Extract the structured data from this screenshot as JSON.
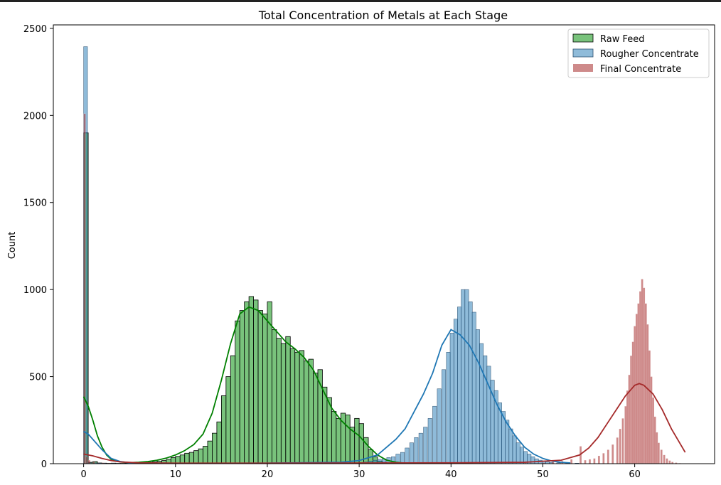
{
  "chart_data": {
    "type": "histogram",
    "title": "Total Concentration of Metals at Each Stage",
    "xlabel": "",
    "ylabel": "Count",
    "xlim": [
      -3.3,
      68.7
    ],
    "ylim": [
      0,
      2520
    ],
    "xticks": [
      0,
      10,
      20,
      30,
      40,
      50,
      60
    ],
    "yticks": [
      0,
      500,
      1000,
      1500,
      2000,
      2500
    ],
    "grid": false,
    "legend_position": "top-right",
    "series": [
      {
        "name": "Raw Feed",
        "color": "#4caf50",
        "kde_color": "#008000",
        "bin_width": 0.5,
        "bins": [
          [
            0.0,
            1900
          ],
          [
            0.5,
            8
          ],
          [
            1.0,
            12
          ],
          [
            1.5,
            4
          ],
          [
            2.0,
            3
          ],
          [
            2.5,
            2
          ],
          [
            3.0,
            3
          ],
          [
            3.5,
            2
          ],
          [
            4.0,
            2
          ],
          [
            4.5,
            3
          ],
          [
            5.0,
            3
          ],
          [
            5.5,
            4
          ],
          [
            6.0,
            5
          ],
          [
            6.5,
            6
          ],
          [
            7.0,
            8
          ],
          [
            7.5,
            10
          ],
          [
            8.0,
            15
          ],
          [
            8.5,
            18
          ],
          [
            9.0,
            25
          ],
          [
            9.5,
            35
          ],
          [
            10.0,
            42
          ],
          [
            10.5,
            50
          ],
          [
            11.0,
            60
          ],
          [
            11.5,
            65
          ],
          [
            12.0,
            75
          ],
          [
            12.5,
            85
          ],
          [
            13.0,
            100
          ],
          [
            13.5,
            130
          ],
          [
            14.0,
            175
          ],
          [
            14.5,
            240
          ],
          [
            15.0,
            390
          ],
          [
            15.5,
            500
          ],
          [
            16.0,
            620
          ],
          [
            16.5,
            820
          ],
          [
            17.0,
            880
          ],
          [
            17.5,
            930
          ],
          [
            18.0,
            960
          ],
          [
            18.5,
            940
          ],
          [
            19.0,
            880
          ],
          [
            19.5,
            860
          ],
          [
            20.0,
            930
          ],
          [
            20.5,
            770
          ],
          [
            21.0,
            720
          ],
          [
            21.5,
            690
          ],
          [
            22.0,
            730
          ],
          [
            22.5,
            660
          ],
          [
            23.0,
            640
          ],
          [
            23.5,
            650
          ],
          [
            24.0,
            590
          ],
          [
            24.5,
            600
          ],
          [
            25.0,
            520
          ],
          [
            25.5,
            540
          ],
          [
            26.0,
            440
          ],
          [
            26.5,
            380
          ],
          [
            27.0,
            300
          ],
          [
            27.5,
            260
          ],
          [
            28.0,
            290
          ],
          [
            28.5,
            280
          ],
          [
            29.0,
            210
          ],
          [
            29.5,
            260
          ],
          [
            30.0,
            230
          ],
          [
            30.5,
            150
          ],
          [
            31.0,
            80
          ],
          [
            31.5,
            40
          ],
          [
            32.0,
            15
          ],
          [
            32.5,
            8
          ],
          [
            33.0,
            4
          ]
        ],
        "kde": [
          [
            0,
            385
          ],
          [
            0.5,
            330
          ],
          [
            1,
            250
          ],
          [
            1.5,
            160
          ],
          [
            2,
            95
          ],
          [
            2.5,
            50
          ],
          [
            3,
            25
          ],
          [
            4,
            10
          ],
          [
            5,
            6
          ],
          [
            6,
            8
          ],
          [
            7,
            12
          ],
          [
            8,
            20
          ],
          [
            9,
            32
          ],
          [
            10,
            50
          ],
          [
            11,
            75
          ],
          [
            12,
            110
          ],
          [
            13,
            170
          ],
          [
            14,
            290
          ],
          [
            15,
            480
          ],
          [
            16,
            690
          ],
          [
            17,
            860
          ],
          [
            18,
            900
          ],
          [
            19,
            880
          ],
          [
            20,
            820
          ],
          [
            21,
            760
          ],
          [
            22,
            700
          ],
          [
            23,
            660
          ],
          [
            24,
            610
          ],
          [
            25,
            540
          ],
          [
            26,
            430
          ],
          [
            27,
            320
          ],
          [
            28,
            250
          ],
          [
            29,
            200
          ],
          [
            30,
            160
          ],
          [
            31,
            100
          ],
          [
            32,
            50
          ],
          [
            33,
            20
          ],
          [
            34,
            8
          ],
          [
            35,
            3
          ]
        ]
      },
      {
        "name": "Rougher Concentrate",
        "color": "#1f77b4",
        "kde_color": "#1f77b4",
        "bin_width": 0.42,
        "bins": [
          [
            0.0,
            2395
          ],
          [
            0.42,
            5
          ],
          [
            1.0,
            5
          ],
          [
            1.5,
            3
          ],
          [
            2.0,
            2
          ],
          [
            3.0,
            2
          ],
          [
            30.0,
            6
          ],
          [
            30.5,
            10
          ],
          [
            31.0,
            15
          ],
          [
            31.5,
            20
          ],
          [
            32.0,
            25
          ],
          [
            32.5,
            28
          ],
          [
            33.0,
            35
          ],
          [
            33.5,
            40
          ],
          [
            34.0,
            55
          ],
          [
            34.5,
            65
          ],
          [
            35.0,
            90
          ],
          [
            35.5,
            120
          ],
          [
            36.0,
            150
          ],
          [
            36.5,
            175
          ],
          [
            37.0,
            210
          ],
          [
            37.5,
            260
          ],
          [
            38.0,
            330
          ],
          [
            38.5,
            430
          ],
          [
            39.0,
            540
          ],
          [
            39.5,
            640
          ],
          [
            39.9,
            750
          ],
          [
            40.3,
            830
          ],
          [
            40.7,
            900
          ],
          [
            41.1,
            1000
          ],
          [
            41.5,
            1000
          ],
          [
            41.9,
            930
          ],
          [
            42.3,
            870
          ],
          [
            42.7,
            770
          ],
          [
            43.1,
            690
          ],
          [
            43.5,
            620
          ],
          [
            43.9,
            560
          ],
          [
            44.3,
            480
          ],
          [
            44.7,
            420
          ],
          [
            45.1,
            350
          ],
          [
            45.5,
            300
          ],
          [
            45.9,
            250
          ],
          [
            46.3,
            200
          ],
          [
            46.7,
            160
          ],
          [
            47.1,
            120
          ],
          [
            47.5,
            95
          ],
          [
            47.9,
            70
          ],
          [
            48.3,
            55
          ],
          [
            48.7,
            40
          ],
          [
            49.1,
            28
          ],
          [
            49.5,
            20
          ],
          [
            49.9,
            15
          ],
          [
            50.3,
            10
          ],
          [
            50.7,
            7
          ],
          [
            51.5,
            5
          ],
          [
            52.5,
            4
          ],
          [
            53.5,
            3
          ]
        ],
        "kde": [
          [
            0,
            185
          ],
          [
            0.5,
            170
          ],
          [
            1,
            140
          ],
          [
            1.5,
            110
          ],
          [
            2,
            80
          ],
          [
            2.5,
            55
          ],
          [
            3,
            30
          ],
          [
            4,
            12
          ],
          [
            5,
            5
          ],
          [
            10,
            2
          ],
          [
            20,
            3
          ],
          [
            28,
            8
          ],
          [
            30,
            18
          ],
          [
            32,
            50
          ],
          [
            34,
            140
          ],
          [
            35,
            200
          ],
          [
            36,
            300
          ],
          [
            37,
            400
          ],
          [
            38,
            520
          ],
          [
            39,
            680
          ],
          [
            40,
            770
          ],
          [
            41,
            740
          ],
          [
            42,
            680
          ],
          [
            43,
            580
          ],
          [
            44,
            460
          ],
          [
            45,
            340
          ],
          [
            46,
            240
          ],
          [
            47,
            160
          ],
          [
            48,
            95
          ],
          [
            49,
            55
          ],
          [
            50,
            30
          ],
          [
            51,
            15
          ],
          [
            52,
            8
          ],
          [
            53,
            4
          ]
        ]
      },
      {
        "name": "Final Concentrate",
        "color": "#a52a2a",
        "kde_color": "#a52a2a",
        "bin_width": 0.22,
        "bins": [
          [
            0.0,
            2010
          ],
          [
            0.22,
            40
          ],
          [
            0.5,
            20
          ],
          [
            1.0,
            10
          ],
          [
            2.0,
            5
          ],
          [
            45.0,
            3
          ],
          [
            48.0,
            4
          ],
          [
            50.0,
            6
          ],
          [
            51.0,
            10
          ],
          [
            52.0,
            15
          ],
          [
            53.0,
            25
          ],
          [
            54.0,
            100
          ],
          [
            54.5,
            20
          ],
          [
            55.0,
            25
          ],
          [
            55.5,
            30
          ],
          [
            56.0,
            45
          ],
          [
            56.5,
            60
          ],
          [
            57.0,
            80
          ],
          [
            57.5,
            110
          ],
          [
            58.0,
            150
          ],
          [
            58.3,
            200
          ],
          [
            58.6,
            260
          ],
          [
            58.9,
            330
          ],
          [
            59.1,
            420
          ],
          [
            59.3,
            510
          ],
          [
            59.5,
            620
          ],
          [
            59.7,
            700
          ],
          [
            59.9,
            790
          ],
          [
            60.1,
            860
          ],
          [
            60.3,
            920
          ],
          [
            60.5,
            990
          ],
          [
            60.7,
            1060
          ],
          [
            60.9,
            1010
          ],
          [
            61.1,
            920
          ],
          [
            61.3,
            800
          ],
          [
            61.5,
            650
          ],
          [
            61.7,
            500
          ],
          [
            61.9,
            380
          ],
          [
            62.1,
            270
          ],
          [
            62.3,
            180
          ],
          [
            62.5,
            120
          ],
          [
            62.8,
            80
          ],
          [
            63.1,
            50
          ],
          [
            63.4,
            30
          ],
          [
            63.7,
            18
          ],
          [
            64.0,
            10
          ],
          [
            64.4,
            6
          ],
          [
            64.8,
            3
          ]
        ],
        "kde": [
          [
            0,
            55
          ],
          [
            0.5,
            50
          ],
          [
            1,
            45
          ],
          [
            2,
            30
          ],
          [
            3,
            18
          ],
          [
            4,
            10
          ],
          [
            6,
            5
          ],
          [
            10,
            3
          ],
          [
            20,
            3
          ],
          [
            30,
            4
          ],
          [
            40,
            5
          ],
          [
            48,
            8
          ],
          [
            52,
            20
          ],
          [
            54,
            50
          ],
          [
            55,
            90
          ],
          [
            56,
            150
          ],
          [
            57,
            230
          ],
          [
            58,
            310
          ],
          [
            59,
            390
          ],
          [
            60,
            450
          ],
          [
            60.5,
            460
          ],
          [
            61,
            450
          ],
          [
            62,
            400
          ],
          [
            63,
            310
          ],
          [
            64,
            200
          ],
          [
            65,
            110
          ],
          [
            65.5,
            65
          ]
        ]
      }
    ]
  }
}
